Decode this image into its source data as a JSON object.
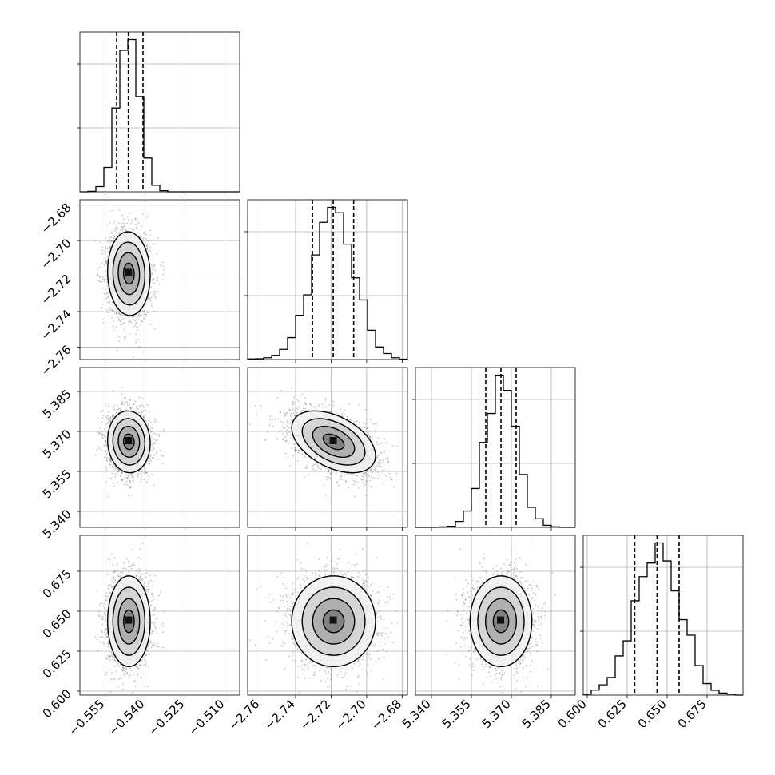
{
  "chart_data": {
    "type": "corner",
    "parameters": [
      {
        "xlim": [
          -0.5645,
          -0.5045
        ],
        "ticks": [
          -0.555,
          -0.54,
          -0.525,
          -0.51
        ],
        "tick_labels": [
          "−0.555",
          "−0.540",
          "−0.525",
          "−0.510"
        ],
        "quantiles": [
          -0.5507,
          -0.5463,
          -0.5408
        ],
        "posterior": {
          "mean": -0.5461,
          "sd": 0.004
        }
      },
      {
        "xlim": [
          -2.767,
          -2.677
        ],
        "ticks": [
          -2.76,
          -2.74,
          -2.72,
          -2.7,
          -2.68
        ],
        "tick_labels": [
          "−2.76",
          "−2.74",
          "−2.72",
          "−2.70",
          "−2.68"
        ],
        "quantiles": [
          -2.7305,
          -2.7188,
          -2.7073
        ],
        "posterior": {
          "mean": -2.7186,
          "sd": 0.0118
        }
      },
      {
        "xlim": [
          5.334,
          5.394
        ],
        "ticks": [
          5.34,
          5.355,
          5.37,
          5.385
        ],
        "tick_labels": [
          "5.340",
          "5.355",
          "5.370",
          "5.385"
        ],
        "quantiles": [
          5.3604,
          5.3661,
          5.3718
        ],
        "posterior": {
          "mean": 5.3661,
          "sd": 0.0058
        }
      },
      {
        "xlim": [
          0.5975,
          0.6975
        ],
        "ticks": [
          0.6,
          0.625,
          0.65,
          0.675
        ],
        "tick_labels": [
          "0.600",
          "0.625",
          "0.650",
          "0.675"
        ],
        "quantiles": [
          0.6297,
          0.6437,
          0.6575
        ],
        "posterior": {
          "mean": 0.6437,
          "sd": 0.0142
        }
      }
    ],
    "correlations": [
      [
        1.0,
        -0.05,
        -0.05,
        0.0
      ],
      [
        -0.05,
        1.0,
        -0.45,
        0.0
      ],
      [
        -0.05,
        -0.45,
        1.0,
        0.0
      ],
      [
        0.0,
        0.0,
        0.0,
        1.0
      ]
    ],
    "histogram_bins": 20,
    "contour_levels_sigma": [
      0.5,
      1.0,
      1.5,
      2.0
    ],
    "grid": true
  }
}
